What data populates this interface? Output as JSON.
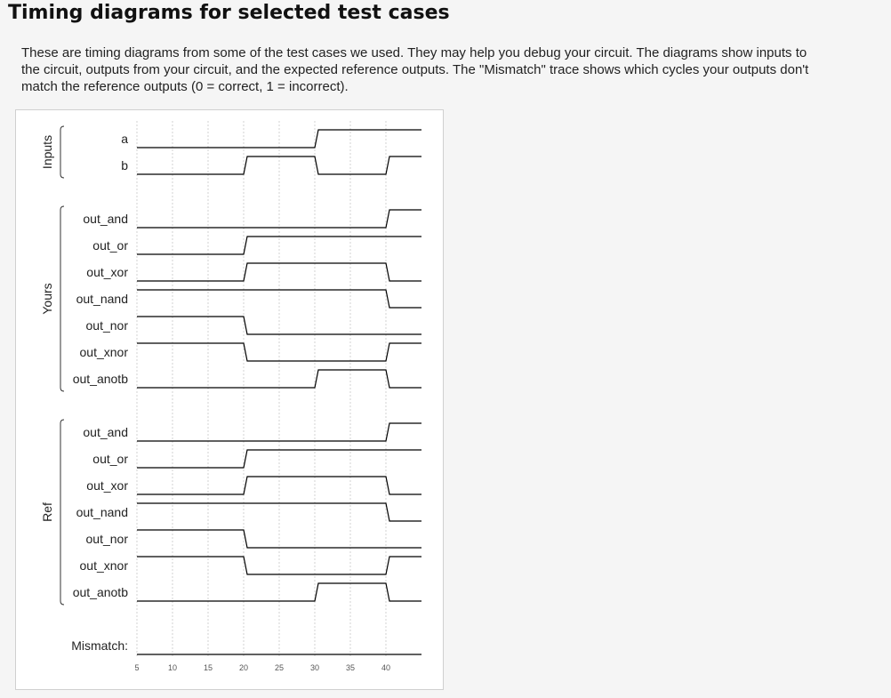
{
  "page": {
    "title": "Timing diagrams for selected test cases",
    "intro_lines": [
      "These are timing diagrams from some of the test cases we used. They may help you debug your circuit. The diagrams show inputs to",
      "the circuit, outputs from your circuit, and the expected reference outputs. The \"Mismatch\" trace shows which cycles your outputs don't",
      "match the reference outputs (0 = correct, 1 = incorrect)."
    ]
  },
  "chart_data": {
    "type": "timing",
    "x_ticks": [
      5,
      10,
      15,
      20,
      25,
      30,
      35,
      40
    ],
    "x_range": [
      5,
      45
    ],
    "grid": true,
    "groups": [
      {
        "name": "Inputs",
        "signals": [
          {
            "name": "a",
            "transitions": [
              [
                0,
                0
              ],
              [
                30,
                1
              ]
            ]
          },
          {
            "name": "b",
            "transitions": [
              [
                0,
                0
              ],
              [
                20,
                1
              ],
              [
                30,
                0
              ],
              [
                40,
                1
              ]
            ]
          }
        ]
      },
      {
        "name": "Yours",
        "signals": [
          {
            "name": "out_and",
            "transitions": [
              [
                0,
                0
              ],
              [
                40,
                1
              ]
            ]
          },
          {
            "name": "out_or",
            "transitions": [
              [
                0,
                0
              ],
              [
                20,
                1
              ]
            ]
          },
          {
            "name": "out_xor",
            "transitions": [
              [
                0,
                0
              ],
              [
                20,
                1
              ],
              [
                40,
                0
              ]
            ]
          },
          {
            "name": "out_nand",
            "transitions": [
              [
                0,
                1
              ],
              [
                40,
                0
              ]
            ]
          },
          {
            "name": "out_nor",
            "transitions": [
              [
                0,
                1
              ],
              [
                20,
                0
              ]
            ]
          },
          {
            "name": "out_xnor",
            "transitions": [
              [
                0,
                1
              ],
              [
                20,
                0
              ],
              [
                40,
                1
              ]
            ]
          },
          {
            "name": "out_anotb",
            "transitions": [
              [
                0,
                0
              ],
              [
                30,
                1
              ],
              [
                40,
                0
              ]
            ]
          }
        ]
      },
      {
        "name": "Ref",
        "signals": [
          {
            "name": "out_and",
            "transitions": [
              [
                0,
                0
              ],
              [
                40,
                1
              ]
            ]
          },
          {
            "name": "out_or",
            "transitions": [
              [
                0,
                0
              ],
              [
                20,
                1
              ]
            ]
          },
          {
            "name": "out_xor",
            "transitions": [
              [
                0,
                0
              ],
              [
                20,
                1
              ],
              [
                40,
                0
              ]
            ]
          },
          {
            "name": "out_nand",
            "transitions": [
              [
                0,
                1
              ],
              [
                40,
                0
              ]
            ]
          },
          {
            "name": "out_nor",
            "transitions": [
              [
                0,
                1
              ],
              [
                20,
                0
              ]
            ]
          },
          {
            "name": "out_xnor",
            "transitions": [
              [
                0,
                1
              ],
              [
                20,
                0
              ],
              [
                40,
                1
              ]
            ]
          },
          {
            "name": "out_anotb",
            "transitions": [
              [
                0,
                0
              ],
              [
                30,
                1
              ],
              [
                40,
                0
              ]
            ]
          }
        ]
      }
    ],
    "mismatch": {
      "name": "Mismatch:",
      "transitions": [
        [
          0,
          0
        ]
      ]
    }
  }
}
